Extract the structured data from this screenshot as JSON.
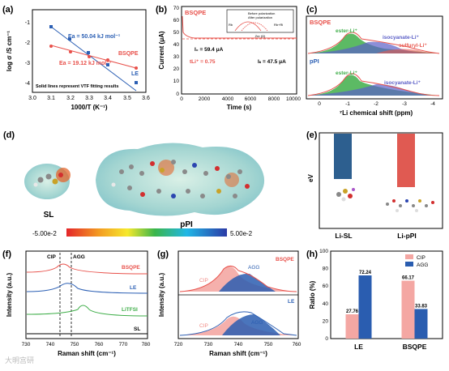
{
  "panels": {
    "a": {
      "letter": "(a)",
      "ylabel": "log σ /S cm⁻¹",
      "xlabel": "1000/T (K⁻¹)",
      "xticks": [
        "3.0",
        "3.1",
        "3.2",
        "3.3",
        "3.4",
        "3.5",
        "3.6"
      ],
      "yticks": [
        "-1",
        "-2",
        "-3",
        "-4"
      ],
      "ea_le": "Ea = 50.04 kJ mol⁻¹",
      "ea_bsqpe": "Ea = 19.12 kJ mol⁻¹",
      "label_bsqpe": "BSQPE",
      "label_le": "LE",
      "note": "Solid lines represent VTF fitting results",
      "colors": {
        "le": "#2b5fb4",
        "bsqpe": "#e8504a"
      }
    },
    "b": {
      "letter": "(b)",
      "title": "BSQPE",
      "ylabel": "Current (μA)",
      "xlabel": "Time (s)",
      "xticks": [
        "0",
        "2000",
        "4000",
        "6000",
        "8000",
        "10000"
      ],
      "yticks": [
        "0",
        "10",
        "20",
        "30",
        "40",
        "50",
        "60",
        "70"
      ],
      "i0": "I₀ = 59.4 μA",
      "is": "Iₛ = 47.5 μA",
      "tli": "tLi⁺ = 0.75",
      "inset_legend_before": "Before polarization",
      "inset_legend_after": "After polarization",
      "inset_xlabel": "Zre (Ω)",
      "inset_ylabel": "-Zim (Ω)",
      "inset_r0": "R₀",
      "inset_rs": "Rb+Ri",
      "inset_rb": "Rb"
    },
    "c": {
      "letter": "(c)",
      "top_title": "BSQPE",
      "bottom_title": "pPI",
      "ester": "ester-Li⁺",
      "isocyanate": "isocyanate-Li⁺",
      "sulfuryl": "sulfuryl-Li⁺",
      "ester2": "ester-Li⁺",
      "isocyanate2": "isocyanate-Li⁺",
      "xlabel": "⁷Li chemical shift (ppm)",
      "xticks": [
        "0",
        "-1",
        "-2",
        "-3",
        "-4"
      ]
    },
    "d": {
      "letter": "(d)",
      "label_sl": "SL",
      "label_ppi": "pPI",
      "scale_min": "-5.00e-2",
      "scale_max": "5.00e-2"
    },
    "e": {
      "letter": "(e)",
      "ylabel": "eV",
      "cat1": "Li-SL",
      "cat2": "Li-pPI",
      "colors": {
        "sl": "#2d5f8f",
        "ppi": "#e05a52"
      }
    },
    "f": {
      "letter": "(f)",
      "ylabel": "Intensity (a.u.)",
      "xlabel": "Raman shift (cm⁻¹)",
      "xticks": [
        "730",
        "740",
        "750",
        "760",
        "770",
        "780"
      ],
      "cip": "CIP",
      "agg": "AGG",
      "bsqpe": "BSQPE",
      "le": "LE",
      "litfsi": "LiTFSI",
      "sl": "SL"
    },
    "g": {
      "letter": "(g)",
      "ylabel": "Intensity (a.u.)",
      "xlabel": "Raman shift (cm⁻¹)",
      "xticks": [
        "720",
        "730",
        "740",
        "750",
        "760"
      ],
      "top_label": "BSQPE",
      "bottom_label": "LE",
      "cip": "CIP",
      "agg": "AGG",
      "cip2": "CIP",
      "agg2": "AGG"
    },
    "h": {
      "letter": "(h)",
      "ylabel": "Ratio (%)",
      "yticks": [
        "0",
        "20",
        "40",
        "60",
        "80",
        "100"
      ],
      "legend_cip": "CIP",
      "legend_agg": "AGG",
      "colors": {
        "cip": "#f4a7a3",
        "agg": "#2a5db0"
      }
    }
  },
  "chart_data": [
    {
      "type": "bar",
      "categories": [
        "LE",
        "BSQPE"
      ],
      "series": [
        {
          "name": "CIP",
          "values": [
            27.76,
            66.17
          ]
        },
        {
          "name": "AGG",
          "values": [
            72.24,
            33.83
          ]
        }
      ],
      "ylabel": "Ratio (%)",
      "ylim": [
        0,
        100
      ]
    },
    {
      "type": "scatter",
      "xlabel": "1000/T (K⁻¹)",
      "ylabel": "log σ /S cm⁻¹",
      "series": [
        {
          "name": "LE",
          "x": [
            3.1,
            3.2,
            3.3,
            3.4,
            3.55
          ],
          "y": [
            -1.3,
            -1.9,
            -2.6,
            -3.2,
            -4.1
          ]
        },
        {
          "name": "BSQPE",
          "x": [
            3.1,
            3.2,
            3.3,
            3.4,
            3.55
          ],
          "y": [
            -2.2,
            -2.5,
            -2.75,
            -2.9,
            -3.3
          ]
        }
      ]
    }
  ],
  "watermark": "大明宫研"
}
